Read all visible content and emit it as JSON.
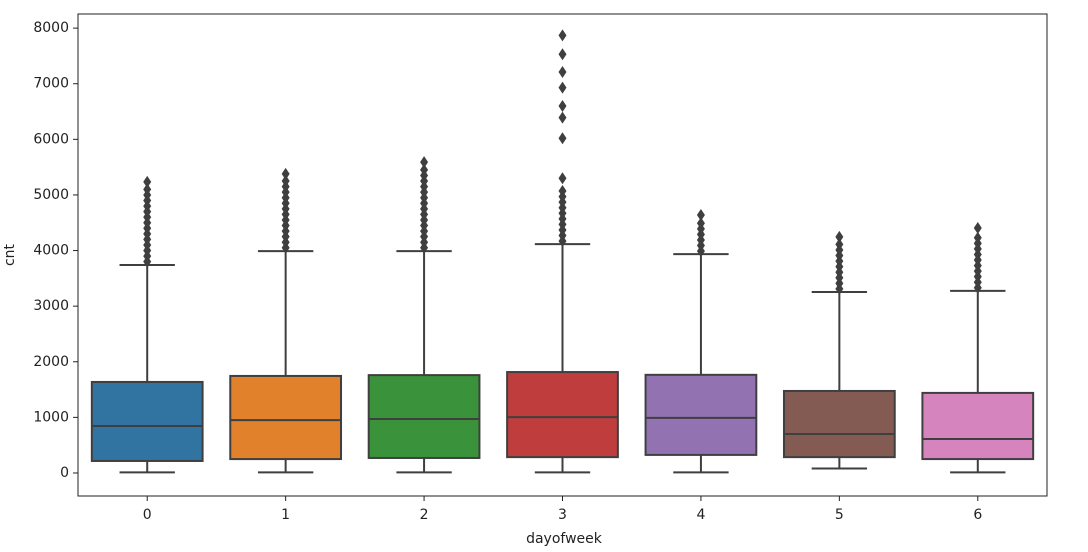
{
  "chart_data": {
    "type": "box",
    "xlabel": "dayofweek",
    "ylabel": "cnt",
    "categories": [
      "0",
      "1",
      "2",
      "3",
      "4",
      "5",
      "6"
    ],
    "colors": [
      "#3274a1",
      "#e1812c",
      "#3a923a",
      "#c03d3e",
      "#9372b2",
      "#845b53",
      "#d684bd"
    ],
    "boxes": [
      {
        "low": 10,
        "q1": 216,
        "median": 845,
        "q3": 1637,
        "high": 3741,
        "outliers": [
          3800,
          3900,
          4000,
          4100,
          4200,
          4300,
          4400,
          4500,
          4600,
          4700,
          4800,
          4900,
          5000,
          5100,
          5234
        ]
      },
      {
        "low": 10,
        "q1": 250,
        "median": 950,
        "q3": 1745,
        "high": 3990,
        "outliers": [
          4050,
          4150,
          4250,
          4350,
          4450,
          4550,
          4650,
          4750,
          4850,
          4950,
          5050,
          5150,
          5250,
          5380
        ]
      },
      {
        "low": 10,
        "q1": 270,
        "median": 970,
        "q3": 1760,
        "high": 3990,
        "outliers": [
          4050,
          4150,
          4250,
          4350,
          4450,
          4550,
          4650,
          4750,
          4850,
          4950,
          5050,
          5150,
          5250,
          5350,
          5450,
          5590
        ]
      },
      {
        "low": 10,
        "q1": 285,
        "median": 1005,
        "q3": 1815,
        "high": 4115,
        "outliers": [
          4170,
          4270,
          4370,
          4470,
          4570,
          4670,
          4770,
          4870,
          4970,
          5070,
          5300,
          6020,
          6390,
          6600,
          6930,
          7210,
          7530,
          7870
        ]
      },
      {
        "low": 10,
        "q1": 325,
        "median": 990,
        "q3": 1765,
        "high": 3935,
        "outliers": [
          3990,
          4090,
          4190,
          4290,
          4390,
          4490,
          4640
        ]
      },
      {
        "low": 80,
        "q1": 285,
        "median": 700,
        "q3": 1475,
        "high": 3255,
        "outliers": [
          3310,
          3410,
          3510,
          3610,
          3710,
          3810,
          3910,
          4010,
          4110,
          4245
        ]
      },
      {
        "low": 10,
        "q1": 250,
        "median": 610,
        "q3": 1440,
        "high": 3275,
        "outliers": [
          3330,
          3430,
          3530,
          3630,
          3730,
          3830,
          3930,
          4030,
          4130,
          4230,
          4405
        ]
      }
    ],
    "ylim": [
      -414,
      8254
    ],
    "yticks": [
      0,
      1000,
      2000,
      3000,
      4000,
      5000,
      6000,
      7000,
      8000
    ]
  }
}
